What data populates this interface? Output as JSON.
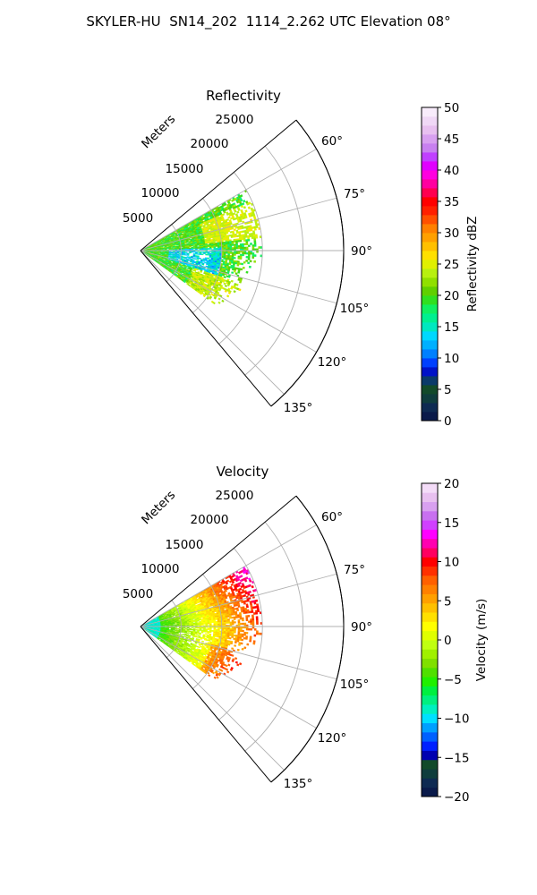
{
  "figure": {
    "suptitle": "SKYLER-HU  SN14_202  1114_2.262 UTC Elevation 08°"
  },
  "chart_data": [
    {
      "type": "heatmap",
      "title": "Reflectivity",
      "projection": "polar sector (range vs azimuth)",
      "radial_label": "Meters",
      "range_ticks": [
        5000,
        10000,
        15000,
        20000,
        25000
      ],
      "range_tick_labels": [
        "5000",
        "10000",
        "15000",
        "20000",
        "25000"
      ],
      "rlim": [
        0,
        25000
      ],
      "azimuth_range_deg": [
        50,
        140
      ],
      "azimuth_ticks_deg": [
        60,
        75,
        90,
        105,
        120,
        135
      ],
      "azimuth_tick_labels": [
        "60°",
        "75°",
        "90°",
        "105°",
        "120°",
        "135°"
      ],
      "data_extent": {
        "azimuth_deg": [
          60,
          126
        ],
        "range_m": [
          0,
          15000
        ]
      },
      "colorbar": {
        "label": "Reflectivity dBZ",
        "range": [
          0,
          50
        ],
        "ticks": [
          "0",
          "5",
          "10",
          "15",
          "20",
          "25",
          "30",
          "35",
          "40",
          "45",
          "50"
        ]
      },
      "dominant_values": "mostly 15–25 dBZ (green/yellow) with ~12 dBZ pockets near 8–10 km range at 90–100°",
      "grid": true
    },
    {
      "type": "heatmap",
      "title": "Velocity",
      "projection": "polar sector (range vs azimuth)",
      "radial_label": "Meters",
      "range_ticks": [
        5000,
        10000,
        15000,
        20000,
        25000
      ],
      "range_tick_labels": [
        "5000",
        "10000",
        "15000",
        "20000",
        "25000"
      ],
      "rlim": [
        0,
        25000
      ],
      "azimuth_range_deg": [
        50,
        140
      ],
      "azimuth_ticks_deg": [
        60,
        75,
        90,
        105,
        120,
        135
      ],
      "azimuth_tick_labels": [
        "60°",
        "75°",
        "90°",
        "105°",
        "120°",
        "135°"
      ],
      "data_extent": {
        "azimuth_deg": [
          60,
          126
        ],
        "range_m": [
          0,
          15000
        ]
      },
      "colorbar": {
        "label": "Velocity (m/s)",
        "range": [
          -20,
          20
        ],
        "ticks": [
          "−20",
          "−15",
          "−10",
          "−5",
          "0",
          "5",
          "10",
          "15",
          "20"
        ]
      },
      "dominant_values": "about −8 m/s near radar, increasing with range to ~0–5 m/s, 10–15 m/s at far range north side",
      "grid": true
    }
  ]
}
